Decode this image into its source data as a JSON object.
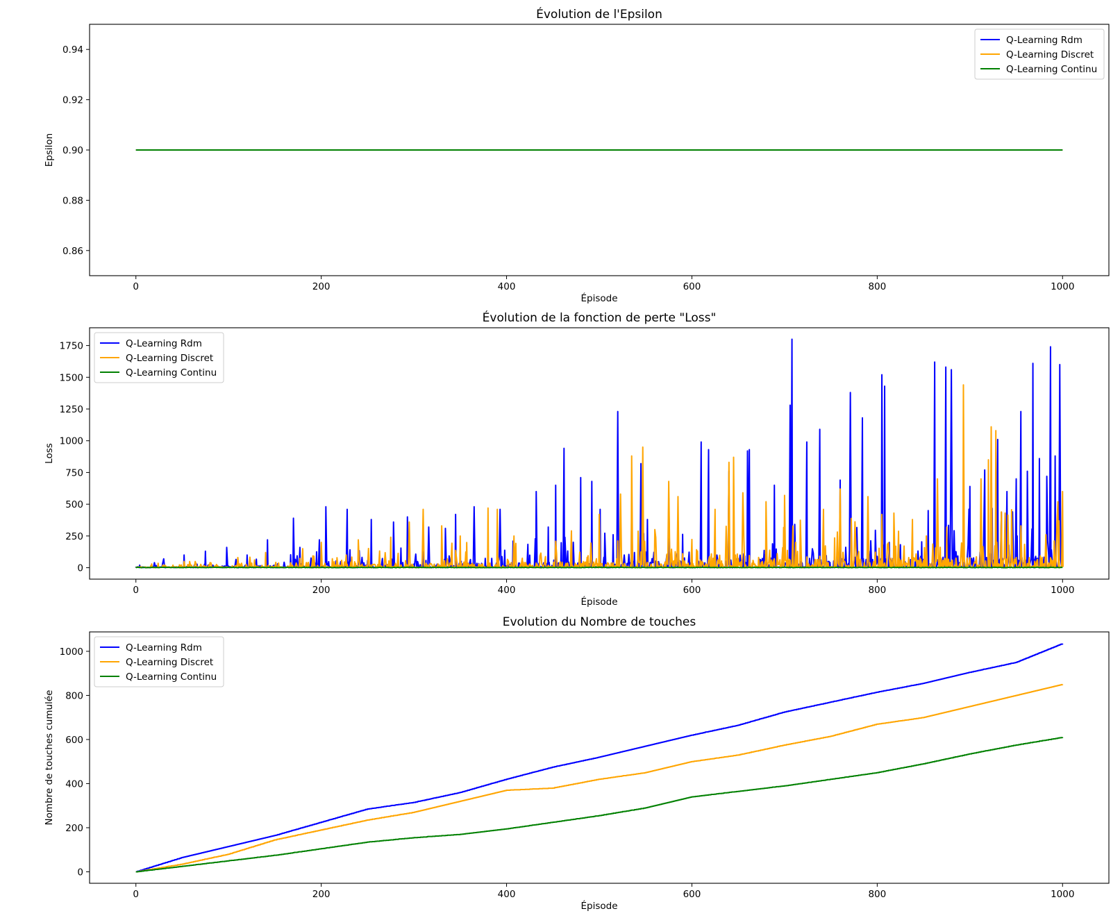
{
  "chart_data": [
    {
      "type": "line",
      "title": "Évolution de l'Epsilon",
      "xlabel": "Épisode",
      "ylabel": "Epsilon",
      "xlim": [
        -50,
        1050
      ],
      "ylim": [
        0.85,
        0.95
      ],
      "xticks": [
        0,
        200,
        400,
        600,
        800,
        1000
      ],
      "yticks": [
        0.86,
        0.88,
        0.9,
        0.92,
        0.94
      ],
      "ytick_labels": [
        "0.86",
        "0.88",
        "0.90",
        "0.92",
        "0.94"
      ],
      "legend_position": "top-right",
      "grid": false,
      "series": [
        {
          "name": "Q-Learning Rdm",
          "color": "#0000ff",
          "pattern": "constant",
          "level": 0.9,
          "x_start": 0,
          "x_end": 1000
        },
        {
          "name": "Q-Learning Discret",
          "color": "#ffa500",
          "pattern": "constant",
          "level": 0.9,
          "x_start": 0,
          "x_end": 1000
        },
        {
          "name": "Q-Learning Continu",
          "color": "#008000",
          "pattern": "constant",
          "level": 0.9,
          "x_start": 0,
          "x_end": 1000
        }
      ]
    },
    {
      "type": "line",
      "title": "Évolution de la fonction de perte \"Loss\"",
      "xlabel": "Épisode",
      "ylabel": "Loss",
      "xlim": [
        -50,
        1050
      ],
      "ylim": [
        -90,
        1890
      ],
      "xticks": [
        0,
        200,
        400,
        600,
        800,
        1000
      ],
      "yticks": [
        0,
        250,
        500,
        750,
        1000,
        1250,
        1500,
        1750
      ],
      "ytick_labels": [
        "0",
        "250",
        "500",
        "750",
        "1000",
        "1250",
        "1500",
        "1750"
      ],
      "legend_position": "top-left",
      "grid": false,
      "series": [
        {
          "name": "Q-Learning Rdm",
          "color": "#0000ff",
          "pattern": "spiky",
          "x_start": 0,
          "x_end": 1000,
          "peaks": [
            [
              4,
              20
            ],
            [
              20,
              40
            ],
            [
              30,
              70
            ],
            [
              52,
              100
            ],
            [
              75,
              130
            ],
            [
              98,
              160
            ],
            [
              120,
              100
            ],
            [
              142,
              220
            ],
            [
              170,
              390
            ],
            [
              177,
              160
            ],
            [
              198,
              220
            ],
            [
              205,
              480
            ],
            [
              228,
              460
            ],
            [
              254,
              380
            ],
            [
              278,
              360
            ],
            [
              293,
              400
            ],
            [
              316,
              320
            ],
            [
              334,
              310
            ],
            [
              345,
              420
            ],
            [
              365,
              480
            ],
            [
              393,
              460
            ],
            [
              432,
              600
            ],
            [
              445,
              320
            ],
            [
              453,
              650
            ],
            [
              462,
              940
            ],
            [
              480,
              710
            ],
            [
              492,
              680
            ],
            [
              501,
              460
            ],
            [
              515,
              260
            ],
            [
              520,
              1230
            ],
            [
              535,
              510
            ],
            [
              545,
              820
            ],
            [
              552,
              380
            ],
            [
              575,
              550
            ],
            [
              610,
              990
            ],
            [
              618,
              930
            ],
            [
              640,
              760
            ],
            [
              660,
              920
            ],
            [
              662,
              930
            ],
            [
              689,
              650
            ],
            [
              706,
              1280
            ],
            [
              708,
              1800
            ],
            [
              724,
              990
            ],
            [
              738,
              1090
            ],
            [
              760,
              690
            ],
            [
              771,
              1380
            ],
            [
              784,
              1180
            ],
            [
              805,
              1520
            ],
            [
              808,
              1430
            ],
            [
              855,
              450
            ],
            [
              862,
              1620
            ],
            [
              874,
              1580
            ],
            [
              880,
              1560
            ],
            [
              900,
              640
            ],
            [
              916,
              770
            ],
            [
              930,
              1010
            ],
            [
              940,
              600
            ],
            [
              950,
              700
            ],
            [
              955,
              1230
            ],
            [
              962,
              760
            ],
            [
              968,
              1610
            ],
            [
              975,
              860
            ],
            [
              983,
              720
            ],
            [
              987,
              1740
            ],
            [
              992,
              880
            ],
            [
              997,
              1600
            ]
          ]
        },
        {
          "name": "Q-Learning Discret",
          "color": "#ffa500",
          "pattern": "spiky",
          "x_start": 0,
          "x_end": 1000,
          "peaks": [
            [
              40,
              20
            ],
            [
              80,
              40
            ],
            [
              110,
              80
            ],
            [
              140,
              120
            ],
            [
              180,
              150
            ],
            [
              200,
              200
            ],
            [
              240,
              220
            ],
            [
              275,
              240
            ],
            [
              295,
              360
            ],
            [
              310,
              460
            ],
            [
              330,
              330
            ],
            [
              350,
              250
            ],
            [
              380,
              470
            ],
            [
              390,
              460
            ],
            [
              408,
              250
            ],
            [
              470,
              290
            ],
            [
              500,
              420
            ],
            [
              523,
              580
            ],
            [
              535,
              880
            ],
            [
              547,
              950
            ],
            [
              575,
              680
            ],
            [
              585,
              560
            ],
            [
              625,
              460
            ],
            [
              640,
              830
            ],
            [
              645,
              870
            ],
            [
              655,
              590
            ],
            [
              680,
              520
            ],
            [
              700,
              570
            ],
            [
              712,
              200
            ],
            [
              742,
              460
            ],
            [
              760,
              620
            ],
            [
              790,
              560
            ],
            [
              805,
              420
            ],
            [
              818,
              430
            ],
            [
              838,
              380
            ],
            [
              853,
              250
            ],
            [
              865,
              700
            ],
            [
              875,
              320
            ],
            [
              893,
              1440
            ],
            [
              912,
              700
            ],
            [
              920,
              850
            ],
            [
              923,
              1110
            ],
            [
              928,
              1080
            ],
            [
              938,
              430
            ],
            [
              955,
              330
            ],
            [
              982,
              260
            ],
            [
              995,
              520
            ],
            [
              1000,
              600
            ]
          ]
        },
        {
          "name": "Q-Learning Continu",
          "color": "#008000",
          "pattern": "spiky",
          "x_start": 0,
          "x_end": 1000,
          "peaks": [
            [
              100,
              3
            ],
            [
              300,
              4
            ],
            [
              500,
              5
            ],
            [
              700,
              5
            ],
            [
              900,
              6
            ]
          ]
        }
      ]
    },
    {
      "type": "line",
      "title": "Evolution du Nombre de touches",
      "xlabel": "Épisode",
      "ylabel": "Nombre de touches cumulée",
      "xlim": [
        -50,
        1050
      ],
      "ylim": [
        -52,
        1088
      ],
      "xticks": [
        0,
        200,
        400,
        600,
        800,
        1000
      ],
      "yticks": [
        0,
        200,
        400,
        600,
        800,
        1000
      ],
      "ytick_labels": [
        "0",
        "200",
        "400",
        "600",
        "800",
        "1000"
      ],
      "legend_position": "top-left",
      "grid": false,
      "series": [
        {
          "name": "Q-Learning Rdm",
          "color": "#0000ff",
          "pattern": "step",
          "x": [
            0,
            50,
            100,
            150,
            200,
            250,
            300,
            350,
            400,
            450,
            500,
            550,
            600,
            650,
            700,
            750,
            800,
            850,
            900,
            950,
            1000
          ],
          "values": [
            0,
            65,
            115,
            165,
            225,
            285,
            315,
            360,
            420,
            475,
            520,
            570,
            620,
            665,
            725,
            770,
            815,
            855,
            905,
            950,
            1035
          ]
        },
        {
          "name": "Q-Learning Discret",
          "color": "#ffa500",
          "pattern": "step",
          "x": [
            0,
            50,
            100,
            150,
            200,
            250,
            300,
            350,
            400,
            450,
            500,
            550,
            600,
            650,
            700,
            750,
            800,
            850,
            900,
            950,
            1000
          ],
          "values": [
            0,
            35,
            80,
            145,
            190,
            235,
            270,
            320,
            370,
            380,
            420,
            450,
            500,
            530,
            575,
            615,
            670,
            700,
            750,
            800,
            850
          ]
        },
        {
          "name": "Q-Learning Continu",
          "color": "#008000",
          "pattern": "step",
          "x": [
            0,
            50,
            100,
            150,
            200,
            250,
            300,
            350,
            400,
            450,
            500,
            550,
            600,
            650,
            700,
            750,
            800,
            850,
            900,
            950,
            1000
          ],
          "values": [
            0,
            25,
            50,
            75,
            105,
            135,
            155,
            170,
            195,
            225,
            255,
            290,
            340,
            365,
            390,
            420,
            450,
            490,
            535,
            575,
            610
          ]
        }
      ]
    }
  ]
}
